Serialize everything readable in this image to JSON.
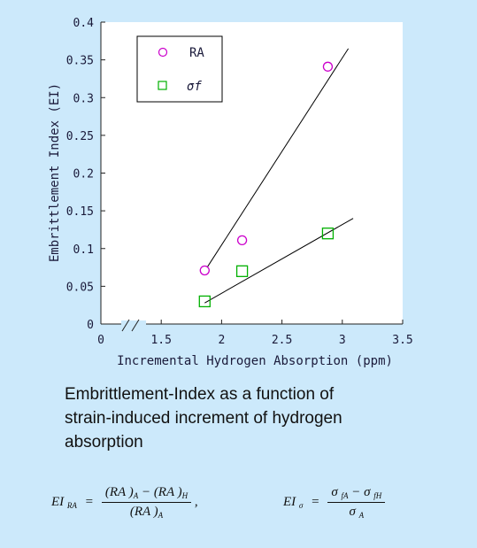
{
  "chart_data": {
    "type": "scatter",
    "xlabel": "Incremental Hydrogen Absorption (ppm)",
    "ylabel": "Embrittlement Index (EI)",
    "x_ticks": [
      {
        "value": 0,
        "label": "0"
      },
      {
        "value": 1.5,
        "label": "1.5"
      },
      {
        "value": 2,
        "label": "2"
      },
      {
        "value": 2.5,
        "label": "2.5"
      },
      {
        "value": 3,
        "label": "3"
      },
      {
        "value": 3.5,
        "label": "3.5"
      }
    ],
    "y_ticks": [
      "0",
      "0.05",
      "0.1",
      "0.15",
      "0.2",
      "0.25",
      "0.3",
      "0.35",
      "0.4"
    ],
    "xlim": [
      1.0,
      3.5
    ],
    "x_axis_break": true,
    "ylim": [
      0,
      0.4
    ],
    "grid": false,
    "legend_position": "top-left",
    "series": [
      {
        "name": "RA",
        "marker": "circle",
        "color": "#cc00cc",
        "points": [
          [
            1.86,
            0.071
          ],
          [
            2.17,
            0.111
          ],
          [
            2.88,
            0.341
          ]
        ],
        "trendline": [
          [
            1.88,
            0.075
          ],
          [
            3.05,
            0.365
          ]
        ]
      },
      {
        "name": "σf",
        "marker": "square",
        "color": "#00b000",
        "points": [
          [
            1.86,
            0.03
          ],
          [
            2.17,
            0.07
          ],
          [
            2.88,
            0.12
          ]
        ],
        "trendline": [
          [
            1.86,
            0.028
          ],
          [
            3.09,
            0.14
          ]
        ]
      }
    ]
  },
  "caption": {
    "line1": "Embrittlement-Index as a  function of",
    "line2": "strain-induced increment of hydrogen",
    "line3": "absorption"
  },
  "formula": {
    "ra_lhs": "EI",
    "ra_lhs_sub": "RA",
    "eq": "=",
    "ra_num_a": "(RA )",
    "ra_num_a_sub": "A",
    "minus": "−",
    "ra_num_b": "(RA )",
    "ra_num_b_sub": "H",
    "ra_den": "(RA )",
    "ra_den_sub": "A",
    "comma": ",",
    "sig_lhs": "EI",
    "sig_lhs_sub": "σ",
    "sig_num_a": "σ",
    "sig_num_a_sub": "fA",
    "sig_num_b": "σ",
    "sig_num_b_sub": "fH",
    "sig_den": "σ",
    "sig_den_sub": "A"
  }
}
